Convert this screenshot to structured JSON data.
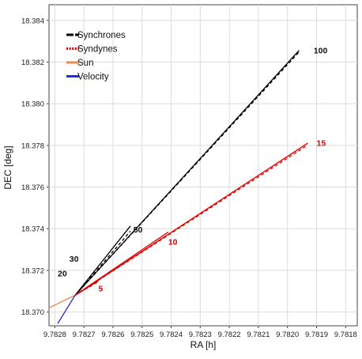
{
  "chart_data": {
    "type": "line",
    "title": "",
    "xlabel": "RA [h]",
    "ylabel": "DEC [deg]",
    "x_reversed": true,
    "xlim": [
      9.78282,
      9.78176
    ],
    "ylim": [
      18.36934,
      18.38475
    ],
    "x_ticks": [
      "9.7828",
      "9.7827",
      "9.7826",
      "9.7825",
      "9.7824",
      "9.7823",
      "9.7822",
      "9.7821",
      "9.7820",
      "9.7819",
      "9.7818"
    ],
    "y_ticks": [
      "18.370",
      "18.372",
      "18.374",
      "18.376",
      "18.378",
      "18.380",
      "18.382",
      "18.384"
    ],
    "grid": true,
    "legend_position": "top-left",
    "legend": [
      {
        "label": "Synchrones",
        "color": "#000000",
        "style": "solid-dashed"
      },
      {
        "label": "Syndynes",
        "color": "#e00000",
        "style": "dotted"
      },
      {
        "label": "Sun",
        "color": "#e8884a",
        "style": "solid"
      },
      {
        "label": "Velocity",
        "color": "#1f2de0",
        "style": "solid"
      }
    ],
    "origin": {
      "x": 9.78273,
      "y": 18.37081
    },
    "series": [
      {
        "name": "Synchrones",
        "color": "#000000",
        "lines": [
          {
            "style": "solid",
            "points": [
              [
                9.78273,
                18.37081
              ],
              [
                9.78196,
                18.38256
              ]
            ]
          },
          {
            "style": "dashed",
            "points": [
              [
                9.78273,
                18.37081
              ],
              [
                9.78196,
                18.38248
              ]
            ]
          },
          {
            "style": "solid",
            "points": [
              [
                9.78273,
                18.37081
              ],
              [
                9.78254,
                18.37413
              ]
            ]
          },
          {
            "style": "dashed",
            "points": [
              [
                9.78273,
                18.37081
              ],
              [
                9.78254,
                18.37388
              ]
            ]
          }
        ]
      },
      {
        "name": "Syndynes",
        "color": "#e00000",
        "lines": [
          {
            "style": "solid",
            "points": [
              [
                9.78273,
                18.37081
              ],
              [
                9.78193,
                18.37811
              ]
            ]
          },
          {
            "style": "dashed",
            "points": [
              [
                9.78273,
                18.37081
              ],
              [
                9.78193,
                18.37802
              ]
            ]
          },
          {
            "style": "solid",
            "points": [
              [
                9.78273,
                18.37081
              ],
              [
                9.78241,
                18.37384
              ]
            ]
          },
          {
            "style": "dashed",
            "points": [
              [
                9.78273,
                18.37081
              ],
              [
                9.78241,
                18.37369
              ]
            ]
          },
          {
            "style": "solid",
            "points": [
              [
                9.78273,
                18.37081
              ],
              [
                9.78265,
                18.3715
              ]
            ]
          },
          {
            "style": "dashed",
            "points": [
              [
                9.78273,
                18.37081
              ],
              [
                9.78265,
                18.37146
              ]
            ]
          }
        ]
      },
      {
        "name": "Sun",
        "color": "#e8884a",
        "lines": [
          {
            "style": "solid",
            "points": [
              [
                9.78273,
                18.37081
              ],
              [
                9.78282,
                18.3702
              ]
            ]
          }
        ]
      },
      {
        "name": "Velocity",
        "color": "#1f2de0",
        "lines": [
          {
            "style": "solid",
            "points": [
              [
                9.78273,
                18.37081
              ],
              [
                9.78279,
                18.36945
              ]
            ]
          }
        ]
      }
    ],
    "annotations": [
      {
        "text": "100",
        "x": 9.78191,
        "y": 18.38257,
        "color": "#111111"
      },
      {
        "text": "15",
        "x": 9.7819,
        "y": 18.37812,
        "color": "#e00000"
      },
      {
        "text": "50",
        "x": 9.78253,
        "y": 18.37398,
        "color": "#111111"
      },
      {
        "text": "10",
        "x": 9.78241,
        "y": 18.37338,
        "color": "#e00000"
      },
      {
        "text": "30",
        "x": 9.78275,
        "y": 18.37257,
        "color": "#111111"
      },
      {
        "text": "20",
        "x": 9.78279,
        "y": 18.37187,
        "color": "#111111"
      },
      {
        "text": "5",
        "x": 9.78265,
        "y": 18.37115,
        "color": "#e00000"
      }
    ]
  }
}
